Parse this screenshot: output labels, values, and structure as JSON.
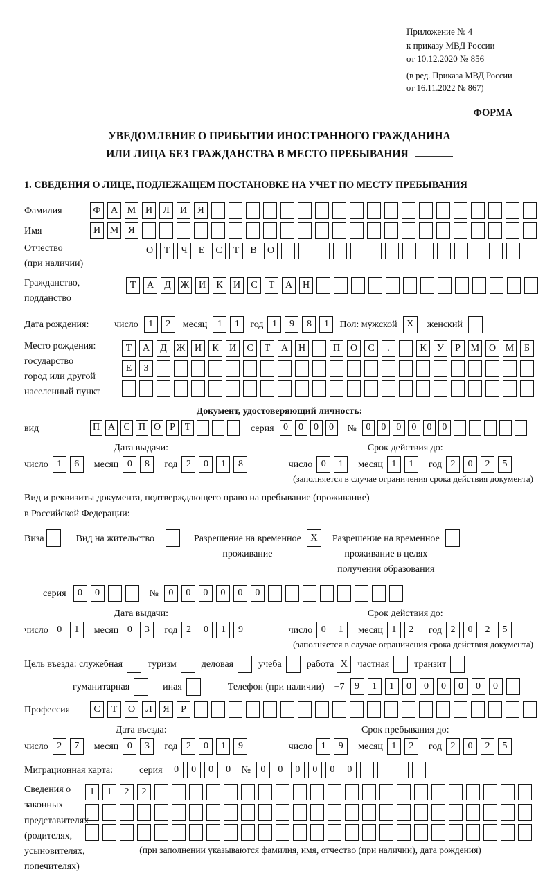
{
  "meta": {
    "ink": "#1a1a1a",
    "paper": "#ffffff"
  },
  "header": {
    "ref_lines": [
      "Приложение № 4",
      "к приказу МВД России",
      "от 10.12.2020 № 856",
      "(в ред. Приказа МВД России",
      "от 16.11.2022 № 867)"
    ],
    "forma": "ФОРМА"
  },
  "title": {
    "line1": "УВЕДОМЛЕНИЕ О ПРИБЫТИИ ИНОСТРАННОГО ГРАЖДАНИНА",
    "line2": "ИЛИ ЛИЦА БЕЗ ГРАЖДАНСТВА В МЕСТО ПРЕБЫВАНИЯ"
  },
  "section1_heading": "1. СВЕДЕНИЯ О ЛИЦЕ, ПОДЛЕЖАЩЕМ ПОСТАНОВКЕ НА УЧЕТ ПО МЕСТУ ПРЕБЫВАНИЯ",
  "surname": {
    "label": "Фамилия",
    "boxes": {
      "v": "ФАМИЛИЯ",
      "n": 26
    }
  },
  "firstname": {
    "label": "Имя",
    "boxes": {
      "v": "ИМЯ",
      "n": 26
    }
  },
  "patronymic": {
    "label": "Отчество",
    "label2": "(при наличии)",
    "boxes": {
      "v": "ОТЧЕСТВО",
      "n": 23
    }
  },
  "citizenship": {
    "label": "Гражданство,",
    "label2": "подданство",
    "boxes": {
      "v": "ТАДЖИКИСТАН",
      "n": 24
    }
  },
  "birth": {
    "label": "Дата рождения:",
    "day_label": "число",
    "day": {
      "v": "12",
      "n": 2
    },
    "month_label": "месяц",
    "month": {
      "v": "11",
      "n": 2
    },
    "year_label": "год",
    "year": {
      "v": "1981",
      "n": 4
    },
    "sex_label": "Пол: мужской",
    "male": "X",
    "female_label": "женский",
    "female": ""
  },
  "birthplace": {
    "labels": [
      "Место рождения:",
      "государство",
      "город или другой",
      "населенный пункт"
    ],
    "row1": {
      "v": "ТАДЖИКИСТАН ПОС. КУРМОМБ",
      "n": 24
    },
    "row2": {
      "v": "ЕЗ",
      "n": 24
    },
    "row3": {
      "v": "",
      "n": 24
    }
  },
  "iddoc": {
    "heading": "Документ, удостоверяющий личность:",
    "kind_label": "вид",
    "kind": {
      "v": "ПАСПОРТ",
      "n": 10
    },
    "series_label": "серия",
    "series": {
      "v": "0000",
      "n": 4
    },
    "number_label": "№",
    "number": {
      "v": "000000",
      "n": 11
    },
    "issued": {
      "head": "Дата выдачи:",
      "day_label": "число",
      "day": {
        "v": "16",
        "n": 2
      },
      "month_label": "месяц",
      "month": {
        "v": "08",
        "n": 2
      },
      "year_label": "год",
      "year": {
        "v": "2018",
        "n": 4
      }
    },
    "valid": {
      "head": "Срок действия до:",
      "day_label": "число",
      "day": {
        "v": "01",
        "n": 2
      },
      "month_label": "месяц",
      "month": {
        "v": "11",
        "n": 2
      },
      "year_label": "год",
      "year": {
        "v": "2025",
        "n": 4
      }
    },
    "note": "(заполняется в случае ограничения срока действия документа)"
  },
  "staydoc": {
    "intro1": "Вид и реквизиты документа, подтверждающего право на пребывание (проживание)",
    "intro2": "в Российской Федерации:",
    "visa_label": "Виза",
    "visa": "",
    "residence_label": "Вид на жительство",
    "residence": "",
    "rvp_label1": "Разрешение на временное",
    "rvp_label2": "проживание",
    "rvp": "X",
    "rvpedu_label1": "Разрешение на временное",
    "rvpedu_label2": "проживание в целях",
    "rvpedu_label3": "получения образования",
    "rvpedu": "",
    "series_label": "серия",
    "series": {
      "v": "00",
      "n": 4
    },
    "number_label": "№",
    "number": {
      "v": "000000",
      "n": 14
    },
    "issued": {
      "head": "Дата выдачи:",
      "day_label": "число",
      "day": {
        "v": "01",
        "n": 2
      },
      "month_label": "месяц",
      "month": {
        "v": "03",
        "n": 2
      },
      "year_label": "год",
      "year": {
        "v": "2019",
        "n": 4
      }
    },
    "valid": {
      "head": "Срок действия до:",
      "day_label": "число",
      "day": {
        "v": "01",
        "n": 2
      },
      "month_label": "месяц",
      "month": {
        "v": "12",
        "n": 2
      },
      "year_label": "год",
      "year": {
        "v": "2025",
        "n": 4
      }
    },
    "note": "(заполняется в случае ограничения срока действия документа)"
  },
  "purpose": {
    "items": [
      {
        "label": "Цель въезда: служебная",
        "v": ""
      },
      {
        "label": "туризм",
        "v": ""
      },
      {
        "label": "деловая",
        "v": ""
      },
      {
        "label": "учеба",
        "v": ""
      },
      {
        "label": "работа",
        "v": "X"
      },
      {
        "label": "частная",
        "v": ""
      },
      {
        "label": "транзит",
        "v": ""
      }
    ],
    "row2": [
      {
        "label": "гуманитарная",
        "v": ""
      },
      {
        "label": "иная",
        "v": ""
      }
    ]
  },
  "phone": {
    "label": "Телефон (при наличии)",
    "prefix": "+7",
    "boxes": {
      "v": "911000000",
      "n": 10
    }
  },
  "profession": {
    "label": "Профессия",
    "boxes": {
      "v": "СТОЛЯР",
      "n": 26
    }
  },
  "entry": {
    "arrival": {
      "head": "Дата въезда:",
      "day_label": "число",
      "day": {
        "v": "27",
        "n": 2
      },
      "month_label": "месяц",
      "month": {
        "v": "03",
        "n": 2
      },
      "year_label": "год",
      "year": {
        "v": "2019",
        "n": 4
      }
    },
    "until": {
      "head": "Срок пребывания до:",
      "day_label": "число",
      "day": {
        "v": "19",
        "n": 2
      },
      "month_label": "месяц",
      "month": {
        "v": "12",
        "n": 2
      },
      "year_label": "год",
      "year": {
        "v": "2025",
        "n": 4
      }
    }
  },
  "migcard": {
    "label": "Миграционная карта:",
    "series_label": "серия",
    "series": {
      "v": "0000",
      "n": 4
    },
    "number_label": "№",
    "number": {
      "v": "000000",
      "n": 10
    }
  },
  "guardians": {
    "labels": [
      "Сведения о",
      "законных",
      "представителях",
      "(родителях,",
      "усыновителях,",
      "попечителях)"
    ],
    "row1": {
      "v": "1122",
      "n": 26
    },
    "row2": {
      "v": "",
      "n": 26
    },
    "row3": {
      "v": "",
      "n": 26
    },
    "note": "(при заполнении указываются фамилия, имя, отчество (при наличии), дата рождения)"
  }
}
